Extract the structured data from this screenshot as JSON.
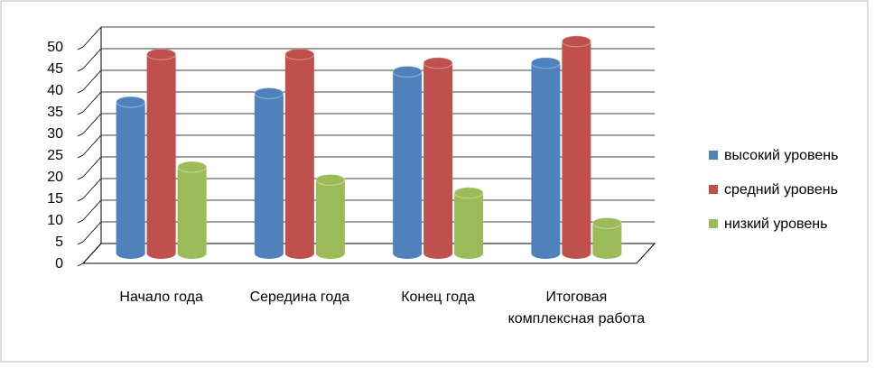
{
  "chart_data": {
    "type": "bar3d",
    "categories": [
      "Начало года",
      "Середина года",
      "Конец года",
      "Итоговая комплексная работа"
    ],
    "series": [
      {
        "name": "высокий уровень",
        "color": "#4f81bd",
        "values": [
          35,
          37,
          42,
          44
        ]
      },
      {
        "name": "средний уровень",
        "color": "#c0504d",
        "values": [
          46,
          46,
          44,
          49
        ]
      },
      {
        "name": "низкий уровень",
        "color": "#9bbb59",
        "values": [
          20,
          17,
          14,
          7
        ]
      }
    ],
    "ylim": [
      0,
      50
    ],
    "yticks": [
      0,
      5,
      10,
      15,
      20,
      25,
      30,
      35,
      40,
      45,
      50
    ],
    "grid": true,
    "legend": "right"
  }
}
